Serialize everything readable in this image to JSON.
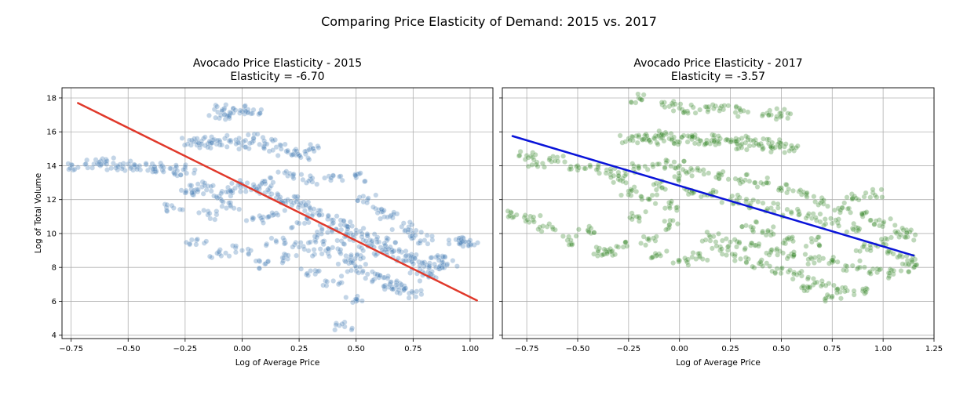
{
  "suptitle": "Comparing Price Elasticity of Demand: 2015 vs. 2017",
  "chart_data": [
    {
      "type": "scatter",
      "title": "Avocado Price Elasticity - 2015",
      "subtitle": "Elasticity = -6.70",
      "xlabel": "Log of Average Price",
      "ylabel": "Log of Total Volume",
      "xlim": [
        -0.79,
        1.1
      ],
      "ylim": [
        3.8,
        18.6
      ],
      "xticks": [
        -0.75,
        -0.5,
        -0.25,
        0.0,
        0.25,
        0.5,
        0.75,
        1.0
      ],
      "xtick_labels": [
        "−0.75",
        "−0.50",
        "−0.25",
        "0.00",
        "0.25",
        "0.50",
        "0.75",
        "1.00"
      ],
      "yticks": [
        4,
        6,
        8,
        10,
        12,
        14,
        16,
        18
      ],
      "ytick_labels": [
        "4",
        "6",
        "8",
        "10",
        "12",
        "14",
        "16",
        "18"
      ],
      "grid": true,
      "series": [
        {
          "kind": "scatter",
          "color": "#4a7fb5",
          "points": [
            [
              -0.72,
              13.9
            ],
            [
              -0.65,
              14.1
            ],
            [
              -0.6,
              14.2
            ],
            [
              -0.55,
              14.0
            ],
            [
              -0.5,
              14.1
            ],
            [
              -0.45,
              14.0
            ],
            [
              -0.4,
              13.9
            ],
            [
              -0.35,
              14.0
            ],
            [
              -0.3,
              13.6
            ],
            [
              -0.25,
              13.8
            ],
            [
              -0.22,
              15.5
            ],
            [
              -0.2,
              15.4
            ],
            [
              -0.15,
              15.3
            ],
            [
              -0.1,
              15.5
            ],
            [
              -0.05,
              15.4
            ],
            [
              0.0,
              15.2
            ],
            [
              0.05,
              15.6
            ],
            [
              0.1,
              15.3
            ],
            [
              0.15,
              15.1
            ],
            [
              0.2,
              14.8
            ],
            [
              0.25,
              14.6
            ],
            [
              0.3,
              15.0
            ],
            [
              -0.08,
              17.3
            ],
            [
              -0.05,
              17.1
            ],
            [
              0.0,
              17.2
            ],
            [
              0.05,
              17.3
            ],
            [
              -0.1,
              16.8
            ],
            [
              -0.3,
              11.5
            ],
            [
              -0.25,
              12.4
            ],
            [
              -0.2,
              12.6
            ],
            [
              -0.15,
              12.8
            ],
            [
              -0.1,
              12.2
            ],
            [
              -0.05,
              12.5
            ],
            [
              0.0,
              12.9
            ],
            [
              0.05,
              12.7
            ],
            [
              0.1,
              12.4
            ],
            [
              0.15,
              12.1
            ],
            [
              0.2,
              12.0
            ],
            [
              0.25,
              11.7
            ],
            [
              0.3,
              11.4
            ],
            [
              0.35,
              11.1
            ],
            [
              0.4,
              10.8
            ],
            [
              0.45,
              10.5
            ],
            [
              0.5,
              10.2
            ],
            [
              0.55,
              9.9
            ],
            [
              0.6,
              9.5
            ],
            [
              0.65,
              9.2
            ],
            [
              0.7,
              8.9
            ],
            [
              0.75,
              8.6
            ],
            [
              0.8,
              8.3
            ],
            [
              0.85,
              8.0
            ],
            [
              0.1,
              13.1
            ],
            [
              0.2,
              13.4
            ],
            [
              0.3,
              13.2
            ],
            [
              0.4,
              13.4
            ],
            [
              0.5,
              13.3
            ],
            [
              0.55,
              12.0
            ],
            [
              0.6,
              11.4
            ],
            [
              0.65,
              11.0
            ],
            [
              0.7,
              10.4
            ],
            [
              0.75,
              10.0
            ],
            [
              0.8,
              9.6
            ],
            [
              0.15,
              9.5
            ],
            [
              0.25,
              9.2
            ],
            [
              0.35,
              8.8
            ],
            [
              0.45,
              8.4
            ],
            [
              0.5,
              8.0
            ],
            [
              0.55,
              7.6
            ],
            [
              0.6,
              7.4
            ],
            [
              0.65,
              7.1
            ],
            [
              0.7,
              6.8
            ],
            [
              0.75,
              6.5
            ],
            [
              0.5,
              6.0
            ],
            [
              0.4,
              7.2
            ],
            [
              0.3,
              7.8
            ],
            [
              0.2,
              8.5
            ],
            [
              0.1,
              8.2
            ],
            [
              0.0,
              9.0
            ],
            [
              -0.1,
              8.8
            ],
            [
              -0.2,
              9.6
            ],
            [
              0.45,
              4.5
            ],
            [
              1.0,
              9.6
            ],
            [
              0.98,
              9.5
            ],
            [
              0.95,
              9.6
            ],
            [
              0.9,
              8.2
            ],
            [
              0.85,
              8.6
            ],
            [
              -0.15,
              11.1
            ],
            [
              -0.05,
              11.6
            ],
            [
              0.05,
              10.9
            ],
            [
              0.15,
              11.2
            ],
            [
              0.25,
              10.6
            ],
            [
              0.35,
              10.2
            ],
            [
              0.45,
              9.8
            ],
            [
              0.55,
              9.4
            ],
            [
              0.62,
              8.9
            ],
            [
              0.72,
              8.4
            ],
            [
              0.78,
              7.9
            ],
            [
              0.82,
              7.5
            ],
            [
              0.66,
              6.7
            ],
            [
              0.32,
              9.6
            ],
            [
              0.42,
              9.1
            ],
            [
              0.52,
              8.7
            ]
          ]
        },
        {
          "kind": "line",
          "color": "#e0392b",
          "from": [
            -0.72,
            17.7
          ],
          "to": [
            1.03,
            6.05
          ]
        }
      ]
    },
    {
      "type": "scatter",
      "title": "Avocado Price Elasticity - 2017",
      "subtitle": "Elasticity = -3.57",
      "xlabel": "Log of Average Price",
      "ylabel": "",
      "xlim": [
        -0.87,
        1.25
      ],
      "ylim": [
        3.8,
        18.6
      ],
      "xticks": [
        -0.75,
        -0.5,
        -0.25,
        0.0,
        0.25,
        0.5,
        0.75,
        1.0,
        1.25
      ],
      "xtick_labels": [
        "−0.75",
        "−0.50",
        "−0.25",
        "0.00",
        "0.25",
        "0.50",
        "0.75",
        "1.00",
        "1.25"
      ],
      "yticks": [
        4,
        6,
        8,
        10,
        12,
        14,
        16,
        18
      ],
      "ytick_labels": [
        "",
        "",
        "",
        "",
        "",
        "",
        "",
        ""
      ],
      "grid": true,
      "series": [
        {
          "kind": "scatter",
          "color": "#3a8a2e",
          "points": [
            [
              -0.8,
              11.1
            ],
            [
              -0.75,
              14.6
            ],
            [
              -0.72,
              10.8
            ],
            [
              -0.7,
              14.2
            ],
            [
              -0.65,
              10.4
            ],
            [
              -0.6,
              14.5
            ],
            [
              -0.55,
              9.6
            ],
            [
              -0.5,
              14.0
            ],
            [
              -0.45,
              10.2
            ],
            [
              -0.4,
              13.8
            ],
            [
              -0.35,
              9.0
            ],
            [
              -0.3,
              13.2
            ],
            [
              -0.25,
              12.5
            ],
            [
              -0.2,
              11.0
            ],
            [
              -0.15,
              9.6
            ],
            [
              -0.1,
              12.8
            ],
            [
              -0.05,
              10.5
            ],
            [
              0.0,
              13.4
            ],
            [
              -0.25,
              15.6
            ],
            [
              -0.2,
              15.7
            ],
            [
              -0.15,
              15.5
            ],
            [
              -0.1,
              15.8
            ],
            [
              -0.05,
              15.6
            ],
            [
              0.0,
              15.4
            ],
            [
              0.05,
              15.7
            ],
            [
              0.1,
              15.5
            ],
            [
              0.15,
              15.3
            ],
            [
              0.2,
              15.6
            ],
            [
              0.25,
              15.4
            ],
            [
              0.3,
              15.2
            ],
            [
              0.35,
              15.5
            ],
            [
              0.4,
              15.3
            ],
            [
              0.45,
              15.1
            ],
            [
              0.5,
              15.3
            ],
            [
              0.55,
              15.0
            ],
            [
              -0.05,
              17.5
            ],
            [
              0.0,
              17.4
            ],
            [
              0.1,
              17.3
            ],
            [
              0.2,
              17.4
            ],
            [
              0.3,
              17.2
            ],
            [
              0.45,
              17.0
            ],
            [
              0.5,
              17.1
            ],
            [
              -0.2,
              18.0
            ],
            [
              -0.3,
              13.6
            ],
            [
              -0.2,
              13.9
            ],
            [
              -0.1,
              14.1
            ],
            [
              0.0,
              14.0
            ],
            [
              0.1,
              13.7
            ],
            [
              0.2,
              13.5
            ],
            [
              0.3,
              13.2
            ],
            [
              0.4,
              13.0
            ],
            [
              0.5,
              12.7
            ],
            [
              0.6,
              12.3
            ],
            [
              0.7,
              11.9
            ],
            [
              0.8,
              11.5
            ],
            [
              0.9,
              11.0
            ],
            [
              1.0,
              10.6
            ],
            [
              0.05,
              12.5
            ],
            [
              0.15,
              12.3
            ],
            [
              0.25,
              12.0
            ],
            [
              0.35,
              11.8
            ],
            [
              0.45,
              11.5
            ],
            [
              0.55,
              11.2
            ],
            [
              0.65,
              10.9
            ],
            [
              0.75,
              10.6
            ],
            [
              0.85,
              10.3
            ],
            [
              0.15,
              9.8
            ],
            [
              0.25,
              9.5
            ],
            [
              0.35,
              9.3
            ],
            [
              0.45,
              9.0
            ],
            [
              0.55,
              8.8
            ],
            [
              0.65,
              8.5
            ],
            [
              0.75,
              8.3
            ],
            [
              0.85,
              8.1
            ],
            [
              0.95,
              7.9
            ],
            [
              1.05,
              7.6
            ],
            [
              1.15,
              8.0
            ],
            [
              0.3,
              8.5
            ],
            [
              0.4,
              8.2
            ],
            [
              0.5,
              7.9
            ],
            [
              0.6,
              7.5
            ],
            [
              0.7,
              7.2
            ],
            [
              0.8,
              6.8
            ],
            [
              0.9,
              6.6
            ],
            [
              0.75,
              6.3
            ],
            [
              0.6,
              6.8
            ],
            [
              0.2,
              9.0
            ],
            [
              0.1,
              8.6
            ],
            [
              0.0,
              8.4
            ],
            [
              -0.1,
              8.8
            ],
            [
              -0.3,
              9.2
            ],
            [
              -0.4,
              8.9
            ],
            [
              0.9,
              9.2
            ],
            [
              1.0,
              9.5
            ],
            [
              1.1,
              10.2
            ],
            [
              1.12,
              9.8
            ],
            [
              0.95,
              12.4
            ],
            [
              0.85,
              12.1
            ],
            [
              -0.15,
              12.0
            ],
            [
              -0.05,
              11.6
            ],
            [
              0.35,
              10.4
            ],
            [
              0.45,
              10.1
            ],
            [
              0.55,
              9.7
            ],
            [
              0.65,
              9.5
            ],
            [
              1.05,
              8.8
            ],
            [
              1.12,
              8.4
            ]
          ]
        },
        {
          "kind": "line",
          "color": "#0a14d9",
          "from": [
            -0.82,
            15.75
          ],
          "to": [
            1.15,
            8.7
          ]
        }
      ]
    }
  ]
}
